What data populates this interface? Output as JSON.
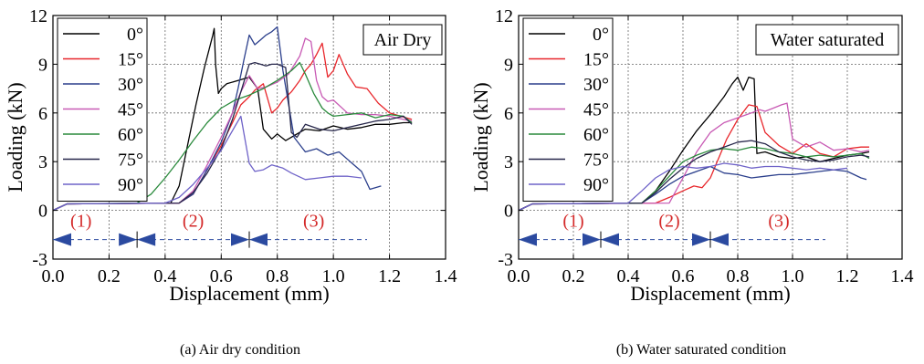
{
  "colors": {
    "0°": "#000000",
    "15°": "#e8262b",
    "30°": "#2b3f8c",
    "45°": "#c85ab4",
    "60°": "#2a8a3c",
    "75°": "#26264a",
    "90°": "#6f63c8",
    "zone_label": "#d42a2a",
    "arrow": "#2b4aa0",
    "dashed": "#2b4aa0",
    "grid": "#666666"
  },
  "chart_data": [
    {
      "type": "line",
      "caption": "(a) Air dry condition",
      "condition_label": "Air Dry",
      "xlabel": "Displacement (mm)",
      "ylabel": "Loading (kN)",
      "xlim": [
        0,
        1.4
      ],
      "ylim": [
        -3,
        12
      ],
      "xticks": [
        "0.0",
        "0.2",
        "0.4",
        "0.6",
        "0.8",
        "1.0",
        "1.2",
        "1.4"
      ],
      "yticks": [
        "-3",
        "0",
        "3",
        "6",
        "9",
        "12"
      ],
      "grid": true,
      "legend_position": "top-left",
      "zones": [
        {
          "label": "(1)",
          "x": 0.1,
          "y": -0.6
        },
        {
          "label": "(2)",
          "x": 0.5,
          "y": -0.6
        },
        {
          "label": "(3)",
          "x": 0.93,
          "y": -0.6
        }
      ],
      "zone_arrow_y": -1.8,
      "zone_boundaries": [
        0.3,
        0.7
      ],
      "zone_line_start": 0.0,
      "zone_line_end": 1.12,
      "series": [
        {
          "name": "0°",
          "x": [
            0,
            0.05,
            0.42,
            0.45,
            0.48,
            0.51,
            0.54,
            0.57,
            0.575,
            0.58,
            0.59,
            0.6,
            0.62,
            0.66,
            0.7,
            0.73,
            0.75,
            0.78,
            0.8,
            0.83,
            0.86,
            0.9,
            0.95,
            1.0,
            1.05,
            1.1,
            1.15,
            1.2,
            1.25,
            1.28
          ],
          "y": [
            0,
            0.4,
            0.45,
            1.5,
            4.0,
            6.5,
            8.8,
            10.8,
            11.2,
            9.0,
            7.2,
            7.5,
            7.8,
            8.0,
            8.2,
            7.5,
            5.0,
            4.4,
            4.7,
            4.3,
            4.6,
            5.0,
            4.9,
            5.2,
            5.0,
            5.1,
            5.3,
            5.3,
            5.4,
            5.4
          ]
        },
        {
          "name": "15°",
          "x": [
            0,
            0.05,
            0.45,
            0.5,
            0.55,
            0.6,
            0.64,
            0.67,
            0.7,
            0.72,
            0.75,
            0.78,
            0.8,
            0.82,
            0.85,
            0.88,
            0.9,
            0.92,
            0.94,
            0.96,
            0.98,
            1.0,
            1.02,
            1.05,
            1.08,
            1.12,
            1.16,
            1.2,
            1.24,
            1.28
          ],
          "y": [
            0,
            0.4,
            0.45,
            1.0,
            2.5,
            4.0,
            5.4,
            6.5,
            7.0,
            7.4,
            7.8,
            6.0,
            6.3,
            6.8,
            7.3,
            8.0,
            8.6,
            9.0,
            9.6,
            10.3,
            8.2,
            8.6,
            9.6,
            8.4,
            7.6,
            7.5,
            6.6,
            6.0,
            5.8,
            5.6
          ]
        },
        {
          "name": "30°",
          "x": [
            0,
            0.05,
            0.45,
            0.5,
            0.55,
            0.6,
            0.64,
            0.66,
            0.68,
            0.7,
            0.72,
            0.74,
            0.76,
            0.78,
            0.8,
            0.82,
            0.86,
            0.9,
            0.94,
            0.98,
            1.02,
            1.06,
            1.1,
            1.13,
            1.17
          ],
          "y": [
            0,
            0.4,
            0.45,
            1.0,
            2.5,
            4.2,
            6.0,
            7.5,
            9.2,
            10.8,
            10.2,
            10.5,
            10.8,
            11.0,
            11.3,
            8.6,
            4.5,
            3.6,
            3.8,
            3.4,
            3.6,
            3.0,
            2.4,
            1.3,
            1.5
          ]
        },
        {
          "name": "45°",
          "x": [
            0,
            0.05,
            0.45,
            0.5,
            0.55,
            0.6,
            0.64,
            0.67,
            0.7,
            0.73,
            0.76,
            0.8,
            0.84,
            0.88,
            0.9,
            0.92,
            0.94,
            0.96,
            0.98,
            1.0,
            1.05,
            1.1,
            1.15,
            1.2,
            1.25,
            1.28
          ],
          "y": [
            0,
            0.4,
            0.45,
            1.2,
            2.8,
            4.5,
            6.0,
            7.3,
            8.3,
            7.5,
            7.6,
            7.9,
            8.4,
            9.5,
            10.6,
            10.4,
            8.0,
            7.0,
            6.7,
            6.8,
            6.0,
            5.9,
            5.9,
            5.8,
            5.6,
            5.5
          ]
        },
        {
          "name": "60°",
          "x": [
            0,
            0.05,
            0.3,
            0.35,
            0.4,
            0.45,
            0.5,
            0.55,
            0.6,
            0.65,
            0.7,
            0.75,
            0.8,
            0.85,
            0.88,
            0.9,
            0.93,
            0.96,
            0.98,
            1.0,
            1.05,
            1.1,
            1.15,
            1.2,
            1.25,
            1.28
          ],
          "y": [
            0,
            0.4,
            0.45,
            1.0,
            2.0,
            3.1,
            4.3,
            5.4,
            6.3,
            6.8,
            7.1,
            7.5,
            8.0,
            8.6,
            9.1,
            8.4,
            7.2,
            6.3,
            6.0,
            5.8,
            5.9,
            6.0,
            5.7,
            5.9,
            5.8,
            5.4
          ]
        },
        {
          "name": "75°",
          "x": [
            0,
            0.05,
            0.45,
            0.5,
            0.55,
            0.6,
            0.64,
            0.67,
            0.7,
            0.72,
            0.74,
            0.76,
            0.78,
            0.8,
            0.83,
            0.85,
            0.87,
            0.9,
            0.95,
            1.0,
            1.05,
            1.1,
            1.15,
            1.2,
            1.25,
            1.28
          ],
          "y": [
            0,
            0.4,
            0.45,
            1.1,
            2.3,
            3.8,
            5.6,
            7.3,
            9.0,
            9.1,
            9.0,
            8.9,
            9.0,
            9.0,
            8.8,
            4.8,
            4.5,
            5.3,
            5.0,
            4.9,
            5.1,
            5.3,
            5.5,
            5.6,
            5.8,
            5.3
          ]
        },
        {
          "name": "90°",
          "x": [
            0,
            0.05,
            0.4,
            0.45,
            0.5,
            0.55,
            0.6,
            0.65,
            0.67,
            0.7,
            0.72,
            0.75,
            0.78,
            0.82,
            0.85,
            0.9,
            0.95,
            1.0,
            1.05,
            1.1
          ],
          "y": [
            0,
            0.4,
            0.45,
            0.8,
            1.6,
            2.6,
            3.7,
            5.2,
            5.8,
            2.9,
            2.4,
            2.5,
            2.8,
            2.6,
            2.3,
            1.9,
            2.0,
            2.1,
            2.1,
            2.0
          ]
        }
      ]
    },
    {
      "type": "line",
      "caption": "(b) Water saturated condition",
      "condition_label": "Water saturated",
      "xlabel": "Displacement (mm)",
      "ylabel": "Loading (kN)",
      "xlim": [
        0,
        1.4
      ],
      "ylim": [
        -3,
        12
      ],
      "xticks": [
        "0.0",
        "0.2",
        "0.4",
        "0.6",
        "0.8",
        "1.0",
        "1.2",
        "1.4"
      ],
      "yticks": [
        "-3",
        "0",
        "3",
        "6",
        "9",
        "12"
      ],
      "grid": true,
      "legend_position": "top-left",
      "zones": [
        {
          "label": "(1)",
          "x": 0.2,
          "y": -0.6
        },
        {
          "label": "(2)",
          "x": 0.55,
          "y": -0.6
        },
        {
          "label": "(3)",
          "x": 0.95,
          "y": -0.6
        }
      ],
      "zone_arrow_y": -1.8,
      "zone_boundaries": [
        0.3,
        0.7
      ],
      "zone_line_start": 0.0,
      "zone_line_end": 1.12,
      "series": [
        {
          "name": "0°",
          "x": [
            0,
            0.05,
            0.45,
            0.5,
            0.55,
            0.6,
            0.65,
            0.7,
            0.75,
            0.78,
            0.8,
            0.82,
            0.84,
            0.86,
            0.87,
            0.9,
            0.95,
            1.0,
            1.05,
            1.1,
            1.15,
            1.2,
            1.25,
            1.28
          ],
          "y": [
            0,
            0.4,
            0.45,
            1.2,
            2.4,
            3.7,
            4.9,
            5.9,
            7.0,
            7.8,
            8.2,
            7.4,
            8.2,
            8.1,
            3.5,
            3.6,
            3.3,
            3.2,
            3.3,
            3.0,
            3.2,
            3.4,
            3.5,
            3.6
          ]
        },
        {
          "name": "15°",
          "x": [
            0,
            0.05,
            0.5,
            0.55,
            0.6,
            0.64,
            0.67,
            0.7,
            0.73,
            0.76,
            0.8,
            0.84,
            0.87,
            0.9,
            0.95,
            1.0,
            1.05,
            1.1,
            1.15,
            1.2,
            1.25,
            1.28
          ],
          "y": [
            0,
            0.4,
            0.45,
            0.8,
            1.2,
            1.5,
            1.4,
            2.0,
            3.2,
            4.4,
            5.6,
            6.5,
            6.4,
            4.8,
            4.0,
            3.5,
            4.1,
            3.5,
            3.3,
            3.8,
            3.9,
            3.9
          ]
        },
        {
          "name": "30°",
          "x": [
            0,
            0.05,
            0.45,
            0.5,
            0.55,
            0.6,
            0.65,
            0.7,
            0.75,
            0.8,
            0.85,
            0.9,
            0.95,
            1.0,
            1.05,
            1.1,
            1.15,
            1.2,
            1.25,
            1.27
          ],
          "y": [
            0,
            0.4,
            0.45,
            1.0,
            1.6,
            2.1,
            2.4,
            2.7,
            2.3,
            2.2,
            2.0,
            2.1,
            2.2,
            2.2,
            2.3,
            2.4,
            2.5,
            2.4,
            2.0,
            1.9
          ]
        },
        {
          "name": "45°",
          "x": [
            0,
            0.05,
            0.55,
            0.6,
            0.65,
            0.7,
            0.75,
            0.8,
            0.85,
            0.88,
            0.9,
            0.93,
            0.96,
            0.98,
            1.0,
            1.05,
            1.1,
            1.15,
            1.2,
            1.25,
            1.28
          ],
          "y": [
            0,
            0.4,
            0.45,
            2.0,
            3.6,
            4.8,
            5.4,
            5.7,
            6.0,
            6.2,
            6.1,
            6.3,
            6.5,
            6.6,
            4.4,
            3.9,
            4.2,
            3.7,
            3.8,
            3.6,
            3.7
          ]
        },
        {
          "name": "60°",
          "x": [
            0,
            0.05,
            0.45,
            0.5,
            0.55,
            0.6,
            0.65,
            0.7,
            0.75,
            0.8,
            0.85,
            0.9,
            0.95,
            1.0,
            1.05,
            1.1,
            1.15,
            1.2,
            1.25,
            1.28
          ],
          "y": [
            0,
            0.4,
            0.45,
            1.2,
            2.1,
            3.0,
            3.4,
            3.7,
            3.8,
            3.7,
            3.9,
            3.8,
            3.6,
            3.5,
            3.3,
            3.4,
            3.3,
            3.4,
            3.5,
            3.2
          ]
        },
        {
          "name": "75°",
          "x": [
            0,
            0.05,
            0.45,
            0.5,
            0.55,
            0.6,
            0.65,
            0.7,
            0.75,
            0.8,
            0.85,
            0.9,
            0.95,
            1.0,
            1.05,
            1.1,
            1.15,
            1.2,
            1.25,
            1.28
          ],
          "y": [
            0,
            0.4,
            0.45,
            1.1,
            1.9,
            2.6,
            3.2,
            3.6,
            3.9,
            4.2,
            4.3,
            4.1,
            3.6,
            3.3,
            3.1,
            3.0,
            3.1,
            3.3,
            3.4,
            3.3
          ]
        },
        {
          "name": "90°",
          "x": [
            0,
            0.05,
            0.4,
            0.45,
            0.5,
            0.55,
            0.6,
            0.65,
            0.7,
            0.75,
            0.8,
            0.85,
            0.9,
            0.95,
            1.0,
            1.05,
            1.1,
            1.15,
            1.2
          ],
          "y": [
            0,
            0.4,
            0.45,
            1.2,
            2.0,
            2.5,
            2.7,
            2.6,
            2.7,
            2.9,
            2.8,
            2.6,
            2.7,
            2.7,
            2.6,
            2.5,
            2.6,
            2.5,
            2.6
          ]
        }
      ]
    }
  ]
}
